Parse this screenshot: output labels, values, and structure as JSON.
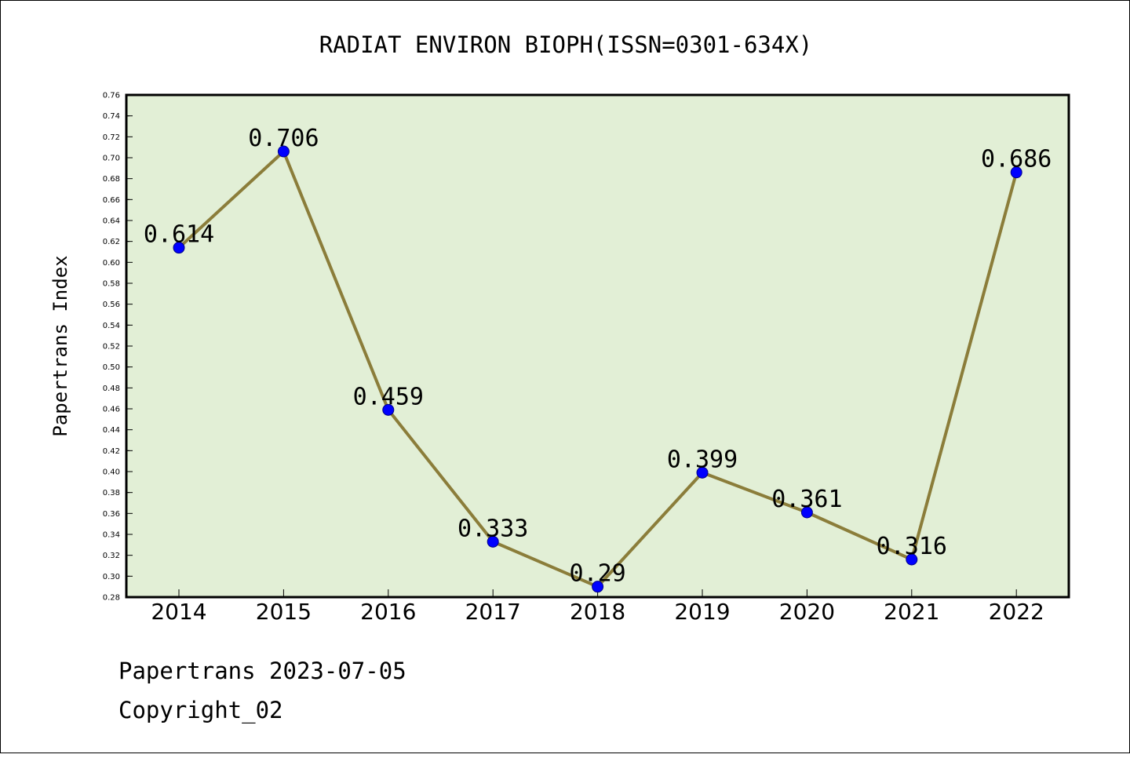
{
  "chart_data": {
    "type": "line",
    "title": "RADIAT ENVIRON BIOPH(ISSN=0301-634X)",
    "xlabel": "",
    "ylabel": "Papertrans Index",
    "categories": [
      "2014",
      "2015",
      "2016",
      "2017",
      "2018",
      "2019",
      "2020",
      "2021",
      "2022"
    ],
    "values": [
      0.614,
      0.706,
      0.459,
      0.333,
      0.29,
      0.399,
      0.361,
      0.316,
      0.686
    ],
    "value_labels": [
      "0.614",
      "0.706",
      "0.459",
      "0.333",
      "0.29",
      "0.399",
      "0.361",
      "0.316",
      "0.686"
    ],
    "ylim": [
      0.28,
      0.76
    ],
    "ytick_step": 0.02,
    "grid": false,
    "colors": {
      "plot_background": "#e2efd6",
      "line": "#8b7d3a",
      "marker": "#0000ff"
    }
  },
  "footer": {
    "line1": "Papertrans 2023-07-05",
    "line2": "Copyright_02"
  }
}
